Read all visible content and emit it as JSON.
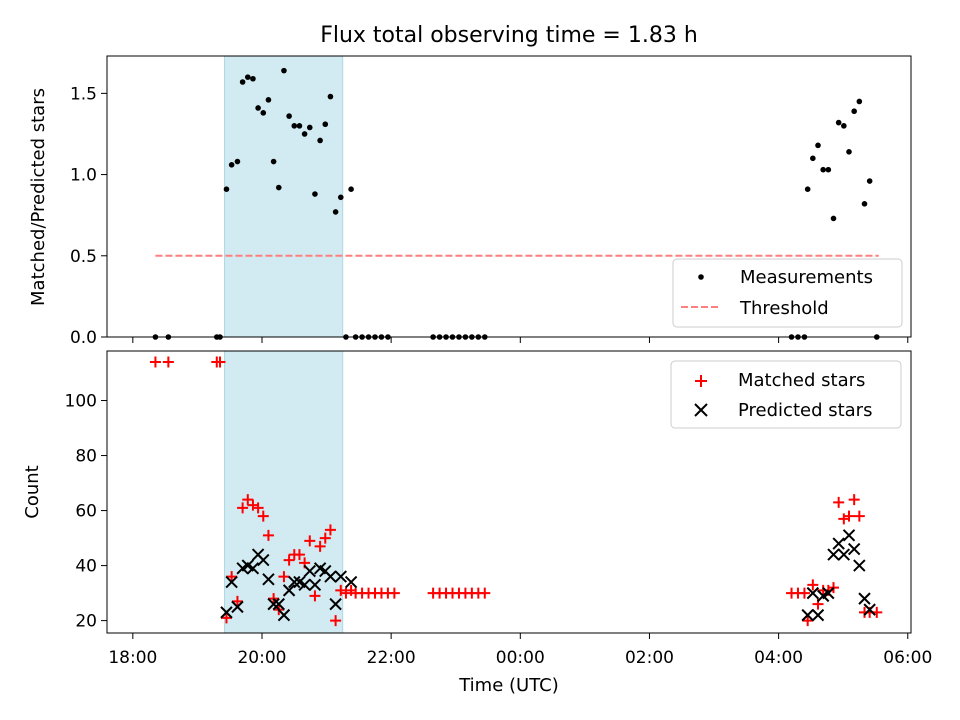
{
  "chart_data": [
    {
      "type": "scatter",
      "title": "Flux total observing time = 1.83 h",
      "xlabel": "",
      "ylabel": "Matched/Predicted stars",
      "xlim": [
        17.6,
        30.05
      ],
      "ylim": [
        0,
        1.73
      ],
      "y_ticks": [
        0.0,
        0.5,
        1.0,
        1.5
      ],
      "y_tick_labels": [
        "0.0",
        "0.5",
        "1.0",
        "1.5"
      ],
      "highlight_span": [
        19.42,
        21.25
      ],
      "threshold": {
        "name": "Threshold",
        "value": 0.5,
        "x_range": [
          18.35,
          29.55
        ],
        "color": "#ff7f7f",
        "style": "dashed"
      },
      "series": [
        {
          "name": "Measurements",
          "marker": "dot",
          "color": "#000000",
          "points": [
            [
              18.35,
              0.0
            ],
            [
              18.55,
              0.0
            ],
            [
              19.3,
              0.0
            ],
            [
              19.35,
              0.0
            ],
            [
              19.45,
              0.91
            ],
            [
              19.53,
              1.06
            ],
            [
              19.62,
              1.08
            ],
            [
              19.7,
              1.57
            ],
            [
              19.78,
              1.6
            ],
            [
              19.86,
              1.59
            ],
            [
              19.94,
              1.41
            ],
            [
              20.02,
              1.38
            ],
            [
              20.1,
              1.46
            ],
            [
              20.18,
              1.08
            ],
            [
              20.26,
              0.92
            ],
            [
              20.34,
              1.64
            ],
            [
              20.42,
              1.36
            ],
            [
              20.5,
              1.3
            ],
            [
              20.58,
              1.3
            ],
            [
              20.66,
              1.25
            ],
            [
              20.74,
              1.29
            ],
            [
              20.82,
              0.88
            ],
            [
              20.9,
              1.21
            ],
            [
              20.98,
              1.31
            ],
            [
              21.06,
              1.48
            ],
            [
              21.14,
              0.77
            ],
            [
              21.22,
              0.86
            ],
            [
              21.38,
              0.91
            ],
            [
              21.3,
              0.0
            ],
            [
              21.45,
              0.0
            ],
            [
              21.55,
              0.0
            ],
            [
              21.65,
              0.0
            ],
            [
              21.75,
              0.0
            ],
            [
              21.85,
              0.0
            ],
            [
              21.95,
              0.0
            ],
            [
              22.65,
              0.0
            ],
            [
              22.75,
              0.0
            ],
            [
              22.85,
              0.0
            ],
            [
              22.95,
              0.0
            ],
            [
              23.05,
              0.0
            ],
            [
              23.15,
              0.0
            ],
            [
              23.25,
              0.0
            ],
            [
              23.35,
              0.0
            ],
            [
              23.45,
              0.0
            ],
            [
              28.2,
              0.0
            ],
            [
              28.3,
              0.0
            ],
            [
              28.4,
              0.0
            ],
            [
              28.45,
              0.91
            ],
            [
              28.53,
              1.1
            ],
            [
              28.61,
              1.18
            ],
            [
              28.69,
              1.03
            ],
            [
              28.77,
              1.03
            ],
            [
              28.85,
              0.73
            ],
            [
              28.93,
              1.32
            ],
            [
              29.01,
              1.3
            ],
            [
              29.09,
              1.14
            ],
            [
              29.17,
              1.39
            ],
            [
              29.25,
              1.45
            ],
            [
              29.33,
              0.82
            ],
            [
              29.41,
              0.96
            ],
            [
              29.52,
              0.0
            ]
          ]
        }
      ],
      "legend": {
        "placement": "lower-right",
        "entries": [
          "Measurements",
          "Threshold"
        ]
      }
    },
    {
      "type": "scatter",
      "title": "",
      "xlabel": "Time (UTC)",
      "ylabel": "Count",
      "xlim": [
        17.6,
        30.05
      ],
      "ylim": [
        15.5,
        118
      ],
      "y_ticks": [
        20,
        40,
        60,
        80,
        100
      ],
      "y_tick_labels": [
        "20",
        "40",
        "60",
        "80",
        "100"
      ],
      "x_ticks": [
        18,
        20,
        22,
        24,
        26,
        28,
        30
      ],
      "x_tick_labels": [
        "18:00",
        "20:00",
        "22:00",
        "00:00",
        "02:00",
        "04:00",
        "06:00"
      ],
      "highlight_span": [
        19.42,
        21.25
      ],
      "series": [
        {
          "name": "Matched stars",
          "marker": "plus",
          "color": "#ff0000",
          "points": [
            [
              18.35,
              114
            ],
            [
              18.55,
              114
            ],
            [
              19.3,
              114
            ],
            [
              19.35,
              114
            ],
            [
              19.45,
              21
            ],
            [
              19.53,
              36
            ],
            [
              19.62,
              27
            ],
            [
              19.7,
              61
            ],
            [
              19.78,
              64
            ],
            [
              19.86,
              62
            ],
            [
              19.94,
              61
            ],
            [
              20.02,
              58
            ],
            [
              20.1,
              51
            ],
            [
              20.18,
              28
            ],
            [
              20.26,
              24
            ],
            [
              20.34,
              36
            ],
            [
              20.42,
              42
            ],
            [
              20.5,
              44
            ],
            [
              20.58,
              44
            ],
            [
              20.66,
              41
            ],
            [
              20.74,
              49
            ],
            [
              20.82,
              29
            ],
            [
              20.9,
              47
            ],
            [
              20.98,
              50
            ],
            [
              21.06,
              53
            ],
            [
              21.14,
              20
            ],
            [
              21.22,
              31
            ],
            [
              21.38,
              31
            ],
            [
              21.3,
              30
            ],
            [
              21.45,
              30
            ],
            [
              21.55,
              30
            ],
            [
              21.65,
              30
            ],
            [
              21.75,
              30
            ],
            [
              21.85,
              30
            ],
            [
              21.95,
              30
            ],
            [
              22.05,
              30
            ],
            [
              22.65,
              30
            ],
            [
              22.75,
              30
            ],
            [
              22.85,
              30
            ],
            [
              22.95,
              30
            ],
            [
              23.05,
              30
            ],
            [
              23.15,
              30
            ],
            [
              23.25,
              30
            ],
            [
              23.35,
              30
            ],
            [
              23.45,
              30
            ],
            [
              28.2,
              30
            ],
            [
              28.3,
              30
            ],
            [
              28.4,
              30
            ],
            [
              28.45,
              20
            ],
            [
              28.53,
              33
            ],
            [
              28.61,
              26
            ],
            [
              28.69,
              31
            ],
            [
              28.77,
              31
            ],
            [
              28.85,
              32
            ],
            [
              28.93,
              63
            ],
            [
              29.01,
              57
            ],
            [
              29.09,
              58
            ],
            [
              29.17,
              64
            ],
            [
              29.25,
              58
            ],
            [
              29.33,
              23
            ],
            [
              29.41,
              23
            ],
            [
              29.52,
              23
            ]
          ]
        },
        {
          "name": "Predicted stars",
          "marker": "cross",
          "color": "#000000",
          "points": [
            [
              19.45,
              23
            ],
            [
              19.53,
              34
            ],
            [
              19.62,
              25
            ],
            [
              19.7,
              39
            ],
            [
              19.78,
              40
            ],
            [
              19.86,
              39
            ],
            [
              19.94,
              44
            ],
            [
              20.02,
              42
            ],
            [
              20.1,
              35
            ],
            [
              20.18,
              26
            ],
            [
              20.26,
              26
            ],
            [
              20.34,
              22
            ],
            [
              20.42,
              31
            ],
            [
              20.5,
              34
            ],
            [
              20.58,
              34
            ],
            [
              20.66,
              33
            ],
            [
              20.74,
              38
            ],
            [
              20.82,
              33
            ],
            [
              20.9,
              39
            ],
            [
              20.98,
              38
            ],
            [
              21.06,
              36
            ],
            [
              21.14,
              26
            ],
            [
              21.22,
              36
            ],
            [
              21.38,
              34
            ],
            [
              28.45,
              22
            ],
            [
              28.53,
              30
            ],
            [
              28.61,
              22
            ],
            [
              28.69,
              29
            ],
            [
              28.77,
              30
            ],
            [
              28.85,
              44
            ],
            [
              28.93,
              48
            ],
            [
              29.01,
              44
            ],
            [
              29.09,
              51
            ],
            [
              29.17,
              46
            ],
            [
              29.25,
              40
            ],
            [
              29.33,
              28
            ],
            [
              29.41,
              24
            ]
          ]
        }
      ],
      "legend": {
        "placement": "top-right",
        "entries": [
          "Matched stars",
          "Predicted stars"
        ]
      }
    }
  ],
  "colors": {
    "span": "#add8e6",
    "matched": "#ff0000",
    "predicted": "#000000",
    "threshold": "#ff7f7f"
  }
}
